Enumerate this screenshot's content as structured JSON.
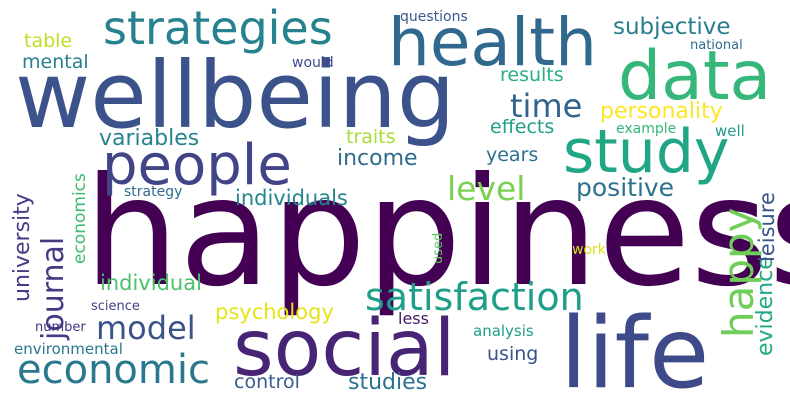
{
  "word_cloud": {
    "words": [
      {
        "id": "happiness",
        "text": "happiness",
        "color": "#440154"
      },
      {
        "id": "wellbeing",
        "text": "wellbeing",
        "color": "#3b528b"
      },
      {
        "id": "life",
        "text": "life",
        "color": "#3e4a89"
      },
      {
        "id": "social",
        "text": "social",
        "color": "#482475"
      },
      {
        "id": "health",
        "text": "health",
        "color": "#31688e"
      },
      {
        "id": "data",
        "text": "data",
        "color": "#35b779"
      },
      {
        "id": "study",
        "text": "study",
        "color": "#21a685"
      },
      {
        "id": "people",
        "text": "people",
        "color": "#414487"
      },
      {
        "id": "strategies",
        "text": "strategies",
        "color": "#26828e"
      },
      {
        "id": "satisfaction",
        "text": "satisfaction",
        "color": "#1f9e89"
      },
      {
        "id": "economic",
        "text": "economic",
        "color": "#2a788e"
      },
      {
        "id": "model",
        "text": "model",
        "color": "#3b528b"
      },
      {
        "id": "happy",
        "text": "happy",
        "color": "#6ece58"
      },
      {
        "id": "level",
        "text": "level",
        "color": "#7ad151"
      },
      {
        "id": "time",
        "text": "time",
        "color": "#33638d"
      },
      {
        "id": "personality",
        "text": "personality",
        "color": "#fde725"
      },
      {
        "id": "journal",
        "text": "journal",
        "color": "#443983"
      },
      {
        "id": "positive",
        "text": "positive",
        "color": "#2c728e"
      },
      {
        "id": "income",
        "text": "income",
        "color": "#2f6c8e"
      },
      {
        "id": "variables",
        "text": "variables",
        "color": "#25848e"
      },
      {
        "id": "subjective",
        "text": "subjective",
        "color": "#287d8e"
      },
      {
        "id": "psychology",
        "text": "psychology",
        "color": "#e5e419"
      },
      {
        "id": "individuals",
        "text": "individuals",
        "color": "#25858e"
      },
      {
        "id": "individual",
        "text": "individual",
        "color": "#4ac16d"
      },
      {
        "id": "studies",
        "text": "studies",
        "color": "#2c728e"
      },
      {
        "id": "results",
        "text": "results",
        "color": "#29af7f"
      },
      {
        "id": "effects",
        "text": "effects",
        "color": "#1fa088"
      },
      {
        "id": "years",
        "text": "years",
        "color": "#2d708e"
      },
      {
        "id": "control",
        "text": "control",
        "color": "#365c8d"
      },
      {
        "id": "using",
        "text": "using",
        "color": "#3b528b"
      },
      {
        "id": "evidence",
        "text": "evidence",
        "color": "#22a884"
      },
      {
        "id": "leisure",
        "text": "leisure",
        "color": "#39568c"
      },
      {
        "id": "university",
        "text": "university",
        "color": "#433e85"
      },
      {
        "id": "mental",
        "text": "mental",
        "color": "#27808e"
      },
      {
        "id": "table",
        "text": "table",
        "color": "#bddf26"
      },
      {
        "id": "traits",
        "text": "traits",
        "color": "#a8db34"
      },
      {
        "id": "economics",
        "text": "economics",
        "color": "#3bbb75"
      },
      {
        "id": "environmental",
        "text": "environmental",
        "color": "#2a788e"
      },
      {
        "id": "analysis",
        "text": "analysis",
        "color": "#1fa088"
      },
      {
        "id": "strategy",
        "text": "strategy",
        "color": "#2f6c8e"
      },
      {
        "id": "example",
        "text": "example",
        "color": "#35b779"
      },
      {
        "id": "well",
        "text": "well",
        "color": "#1f9a8a"
      },
      {
        "id": "questions",
        "text": "questions",
        "color": "#38598c"
      },
      {
        "id": "national",
        "text": "national",
        "color": "#2f6b8e"
      },
      {
        "id": "would",
        "text": "would",
        "color": "#3e4989"
      },
      {
        "id": "science",
        "text": "science",
        "color": "#424086"
      },
      {
        "id": "number",
        "text": "number",
        "color": "#46327e"
      },
      {
        "id": "less",
        "text": "less",
        "color": "#48186a"
      },
      {
        "id": "work",
        "text": "work",
        "color": "#d8e219"
      },
      {
        "id": "used",
        "text": "used",
        "color": "#5ec962"
      }
    ]
  }
}
